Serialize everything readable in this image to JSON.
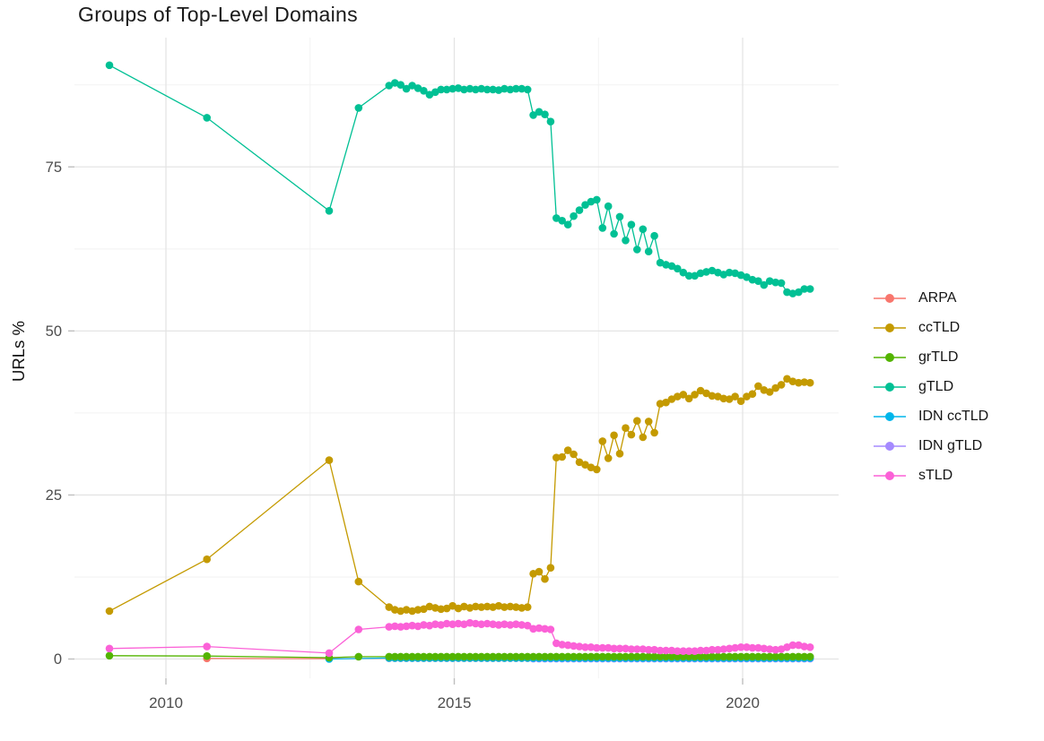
{
  "title": "Groups of Top-Level Domains",
  "axes": {
    "y_label": "URLs %",
    "y_ticks": [
      0,
      25,
      50,
      75
    ],
    "y_minor": [
      12.5,
      37.5,
      62.5,
      87.5
    ],
    "x_ticks": [
      2010,
      2015,
      2020
    ],
    "x_minor": [
      2012.5,
      2017.5
    ]
  },
  "style_colors": {
    "grid_major": "#e4e4e4",
    "grid_minor": "#f2f2f2",
    "tick_mark": "#bfbfbf",
    "tick_text": "#4d4d4d",
    "text": "#111111",
    "background": "#ffffff"
  },
  "chart_data": {
    "type": "line",
    "title": "Groups of Top-Level Domains",
    "xlabel": "",
    "ylabel": "URLs %",
    "xlim": [
      2008.4,
      2021.7
    ],
    "ylim": [
      0,
      91
    ],
    "x_ticks": [
      2010,
      2015,
      2020
    ],
    "y_ticks": [
      0,
      25,
      50,
      75
    ],
    "grid": true,
    "legend_position": "right",
    "legend_order": [
      "ARPA",
      "ccTLD",
      "grTLD",
      "gTLD",
      "IDN ccTLD",
      "IDN gTLD",
      "sTLD"
    ],
    "palette": {
      "ARPA": "#F8766D",
      "ccTLD": "#C49A00",
      "grTLD": "#53B400",
      "gTLD": "#00C094",
      "IDN ccTLD": "#00B6EB",
      "IDN gTLD": "#A58AFF",
      "sTLD": "#FB61D7"
    },
    "series": [
      {
        "name": "ARPA",
        "pts": [
          [
            2010.71,
            0.1
          ],
          [
            2012.83,
            0.05
          ]
        ],
        "dense": {
          "x0": 2013.87,
          "dx": 0.1,
          "n": 74,
          "y_const": 0.12
        }
      },
      {
        "name": "IDN gTLD",
        "pts": [],
        "dense": {
          "x0": 2016.37,
          "dx": 0.1,
          "n": 49,
          "y_const": 0.05
        }
      },
      {
        "name": "IDN ccTLD",
        "pts": [
          [
            2012.83,
            0.0
          ]
        ],
        "dense": {
          "x0": 2013.87,
          "dx": 0.1,
          "n": 74,
          "y_const": 0.15
        }
      },
      {
        "name": "gTLD",
        "pts": [
          [
            2009.02,
            90.5
          ],
          [
            2010.71,
            82.5
          ],
          [
            2012.83,
            68.3
          ],
          [
            2013.34,
            84.0
          ]
        ],
        "dense": {
          "x0": 2013.87,
          "dx": 0.1,
          "y": [
            87.4,
            87.8,
            87.5,
            86.9,
            87.4,
            87.0,
            86.6,
            86.0,
            86.4,
            86.8,
            86.8,
            86.9,
            87.0,
            86.8,
            86.9,
            86.8,
            86.9,
            86.8,
            86.8,
            86.7,
            86.9,
            86.8,
            86.9,
            86.9,
            86.8,
            82.9,
            83.4,
            83.0,
            81.9,
            67.2,
            66.8,
            66.2,
            67.5,
            68.4,
            69.2,
            69.7,
            70.0,
            65.7,
            69.0,
            64.8,
            67.4,
            63.8,
            66.2,
            62.4,
            65.5,
            62.1,
            64.5,
            60.4,
            60.1,
            59.9,
            59.5,
            58.9,
            58.4,
            58.4,
            58.8,
            59.0,
            59.2,
            58.9,
            58.6,
            58.9,
            58.8,
            58.5,
            58.2,
            57.8,
            57.6,
            57.0,
            57.6,
            57.4,
            57.3,
            55.9,
            55.7,
            55.9,
            56.4,
            56.4
          ]
        }
      },
      {
        "name": "ccTLD",
        "pts": [
          [
            2009.02,
            7.3
          ],
          [
            2010.71,
            15.2
          ],
          [
            2012.83,
            30.3
          ],
          [
            2013.34,
            11.8
          ]
        ],
        "dense": {
          "x0": 2013.87,
          "dx": 0.1,
          "y": [
            7.9,
            7.5,
            7.3,
            7.5,
            7.3,
            7.5,
            7.6,
            8.0,
            7.8,
            7.6,
            7.7,
            8.1,
            7.7,
            8.0,
            7.8,
            8.0,
            7.9,
            8.0,
            7.9,
            8.1,
            7.9,
            8.0,
            7.9,
            7.8,
            7.9,
            13.0,
            13.3,
            12.2,
            13.9,
            30.7,
            30.8,
            31.8,
            31.2,
            30.0,
            29.6,
            29.2,
            28.9,
            33.2,
            30.6,
            34.1,
            31.3,
            35.2,
            34.2,
            36.3,
            33.8,
            36.2,
            34.5,
            38.9,
            39.1,
            39.6,
            40.0,
            40.3,
            39.7,
            40.3,
            40.9,
            40.5,
            40.1,
            40.0,
            39.7,
            39.6,
            40.0,
            39.3,
            40.0,
            40.4,
            41.6,
            41.0,
            40.7,
            41.3,
            41.8,
            42.7,
            42.3,
            42.1,
            42.2,
            42.1
          ]
        }
      },
      {
        "name": "grTLD",
        "pts": [
          [
            2009.02,
            0.5
          ],
          [
            2010.71,
            0.45
          ],
          [
            2012.83,
            0.2
          ],
          [
            2013.34,
            0.35
          ]
        ],
        "dense": {
          "x0": 2013.87,
          "dx": 0.1,
          "n": 74,
          "y_const": 0.35
        }
      },
      {
        "name": "sTLD",
        "pts": [
          [
            2009.02,
            1.6
          ],
          [
            2010.71,
            1.9
          ],
          [
            2012.83,
            0.9
          ],
          [
            2013.34,
            4.5
          ]
        ],
        "dense": {
          "x0": 2013.87,
          "dx": 0.1,
          "y": [
            4.9,
            5.0,
            4.9,
            5.0,
            5.1,
            5.0,
            5.2,
            5.1,
            5.3,
            5.2,
            5.4,
            5.3,
            5.4,
            5.3,
            5.5,
            5.4,
            5.3,
            5.4,
            5.3,
            5.2,
            5.3,
            5.2,
            5.3,
            5.2,
            5.1,
            4.6,
            4.7,
            4.6,
            4.5,
            2.4,
            2.2,
            2.1,
            2.0,
            1.9,
            1.8,
            1.8,
            1.7,
            1.7,
            1.7,
            1.6,
            1.6,
            1.6,
            1.5,
            1.5,
            1.5,
            1.4,
            1.4,
            1.3,
            1.3,
            1.3,
            1.2,
            1.2,
            1.2,
            1.2,
            1.3,
            1.3,
            1.4,
            1.4,
            1.5,
            1.6,
            1.7,
            1.8,
            1.8,
            1.7,
            1.7,
            1.6,
            1.5,
            1.4,
            1.5,
            1.8,
            2.1,
            2.1,
            1.9,
            1.8
          ]
        }
      }
    ]
  }
}
